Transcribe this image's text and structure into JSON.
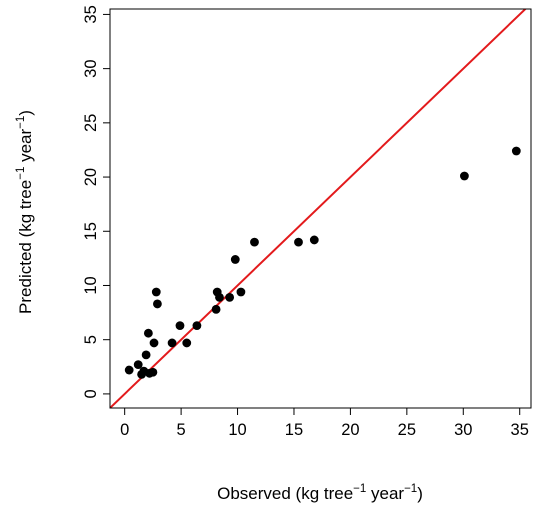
{
  "chart_data": {
    "type": "scatter",
    "xlabel": {
      "base": "Observed (kg tree",
      "exp1": "−1",
      "mid": " year",
      "exp2": "−1",
      "end": ")"
    },
    "ylabel": {
      "base": "Predicted (kg tree",
      "exp1": "−1",
      "mid": " year",
      "exp2": "−1",
      "end": ")"
    },
    "xlim": [
      -1.3,
      36
    ],
    "ylim": [
      -1.3,
      35.5
    ],
    "xticks": [
      0,
      5,
      10,
      15,
      20,
      25,
      30,
      35
    ],
    "yticks": [
      0,
      5,
      10,
      15,
      20,
      25,
      30,
      35
    ],
    "xtick_labels": [
      "0",
      "5",
      "10",
      "15",
      "20",
      "25",
      "30",
      "35"
    ],
    "ytick_labels": [
      "0",
      "5",
      "10",
      "15",
      "20",
      "25",
      "30",
      "35"
    ],
    "grid": false,
    "reference_line": {
      "type": "1:1",
      "slope": 1,
      "intercept": 0,
      "color": "#e31a1c"
    },
    "point_color": "#000000",
    "series": [
      {
        "points": [
          {
            "x": 0.4,
            "y": 2.2
          },
          {
            "x": 1.2,
            "y": 2.7
          },
          {
            "x": 1.5,
            "y": 1.8
          },
          {
            "x": 1.7,
            "y": 2.1
          },
          {
            "x": 1.9,
            "y": 3.6
          },
          {
            "x": 2.1,
            "y": 5.6
          },
          {
            "x": 2.2,
            "y": 1.9
          },
          {
            "x": 2.5,
            "y": 2.0
          },
          {
            "x": 2.6,
            "y": 4.7
          },
          {
            "x": 2.8,
            "y": 9.4
          },
          {
            "x": 2.9,
            "y": 8.3
          },
          {
            "x": 4.2,
            "y": 4.7
          },
          {
            "x": 4.9,
            "y": 6.3
          },
          {
            "x": 5.5,
            "y": 4.7
          },
          {
            "x": 6.4,
            "y": 6.3
          },
          {
            "x": 8.1,
            "y": 7.8
          },
          {
            "x": 8.2,
            "y": 9.4
          },
          {
            "x": 8.4,
            "y": 8.9
          },
          {
            "x": 9.3,
            "y": 8.9
          },
          {
            "x": 9.8,
            "y": 12.4
          },
          {
            "x": 10.3,
            "y": 9.4
          },
          {
            "x": 11.5,
            "y": 14.0
          },
          {
            "x": 15.4,
            "y": 14.0
          },
          {
            "x": 16.8,
            "y": 14.2
          },
          {
            "x": 30.1,
            "y": 20.1
          },
          {
            "x": 34.7,
            "y": 22.4
          }
        ]
      }
    ]
  }
}
